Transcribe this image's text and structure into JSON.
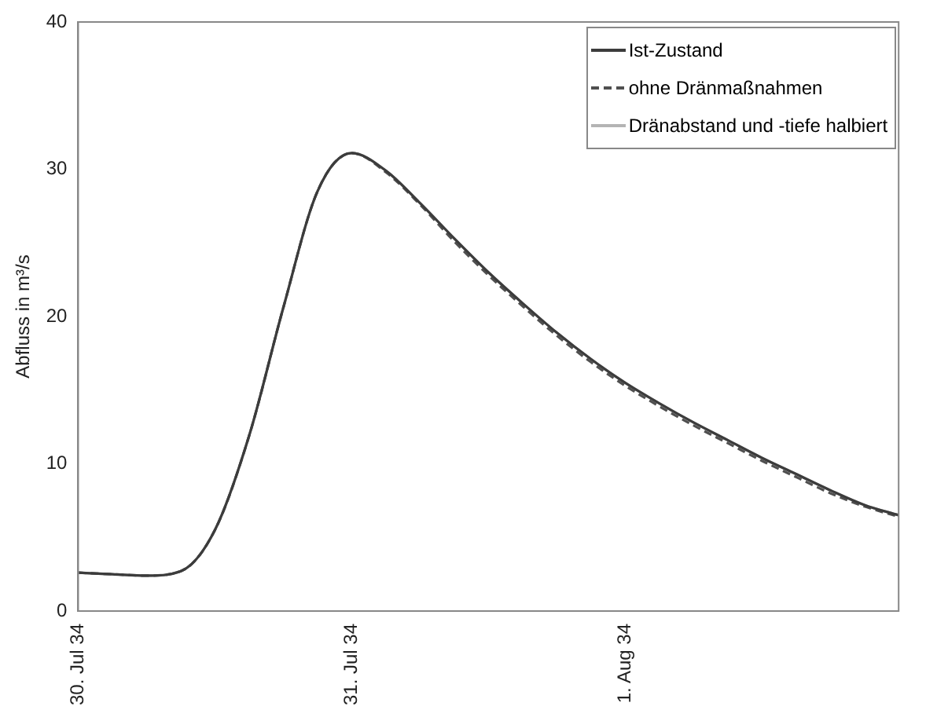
{
  "chart_data": {
    "type": "line",
    "ylabel": "Abfluss in m³/s",
    "categories": [
      "30. Jul 34",
      null,
      null,
      null,
      null,
      null,
      null,
      null,
      "31. Jul 34",
      null,
      null,
      null,
      null,
      null,
      null,
      null,
      "1. Aug 34",
      null,
      null,
      null,
      null,
      null,
      null,
      null,
      null
    ],
    "ylim": [
      0,
      40
    ],
    "yticks": [
      0,
      10,
      20,
      30,
      40
    ],
    "grid": false,
    "legend": "top right",
    "marker": "none",
    "series": [
      {
        "name": "Ist-Zustand",
        "color": "#3c3c3c",
        "line_style": "solid",
        "values": [
          2.6,
          2.5,
          2.4,
          2.7,
          5.5,
          11.9,
          20.6,
          28.5,
          31.1,
          29.9,
          27.7,
          25.3,
          23.0,
          20.9,
          18.9,
          17.1,
          15.5,
          14.1,
          12.8,
          11.6,
          10.4,
          9.3,
          8.2,
          7.2,
          6.5
        ]
      },
      {
        "name": "ohne Dränmaßnahmen",
        "color": "#505050",
        "line_style": "dashed",
        "values": [
          2.6,
          2.5,
          2.4,
          2.7,
          5.5,
          11.9,
          20.6,
          28.5,
          31.1,
          29.8,
          27.6,
          25.1,
          22.8,
          20.7,
          18.7,
          16.9,
          15.3,
          13.9,
          12.6,
          11.4,
          10.2,
          9.1,
          8.0,
          7.1,
          6.4
        ]
      },
      {
        "name": "Dränabstand und -tiefe halbiert",
        "color": "#b4b4b4",
        "line_style": "solid",
        "values": [
          2.6,
          2.5,
          2.4,
          2.7,
          5.5,
          11.9,
          20.6,
          28.5,
          31.1,
          29.9,
          27.7,
          25.3,
          23.0,
          20.9,
          18.9,
          17.1,
          15.5,
          14.1,
          12.8,
          11.6,
          10.4,
          9.3,
          8.2,
          7.2,
          6.5
        ]
      }
    ]
  }
}
